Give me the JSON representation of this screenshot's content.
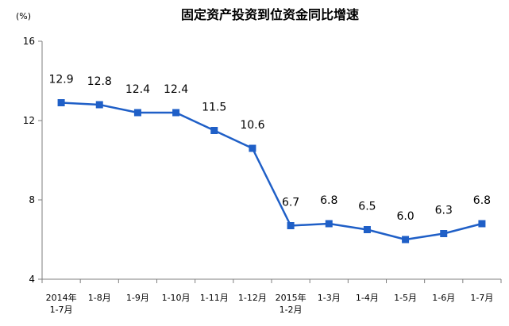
{
  "chart_data": {
    "type": "line",
    "title": "固定资产投资到位资金同比增速",
    "unit_label": "(%)",
    "categories": [
      [
        "2014年",
        "1-7月"
      ],
      [
        "1-8月"
      ],
      [
        "1-9月"
      ],
      [
        "1-10月"
      ],
      [
        "1-11月"
      ],
      [
        "1-12月"
      ],
      [
        "2015年",
        "1-2月"
      ],
      [
        "1-3月"
      ],
      [
        "1-4月"
      ],
      [
        "1-5月"
      ],
      [
        "1-6月"
      ],
      [
        "1-7月"
      ]
    ],
    "series": [
      {
        "values": [
          12.9,
          12.8,
          12.4,
          12.4,
          11.5,
          10.6,
          6.7,
          6.8,
          6.5,
          6.0,
          6.3,
          6.8
        ],
        "data_labels": [
          "12.9",
          "12.8",
          "12.4",
          "12.4",
          "11.5",
          "10.6",
          "6.7",
          "6.8",
          "6.5",
          "6.0",
          "6.3",
          "6.8"
        ],
        "color": "#1f5fc7",
        "marker": "square"
      }
    ],
    "ylim": [
      4,
      16
    ],
    "yticks": [
      4,
      8,
      12,
      16
    ],
    "ytick_labels": [
      "4",
      "8",
      "12",
      "16"
    ],
    "grid": false,
    "legend": "none"
  }
}
